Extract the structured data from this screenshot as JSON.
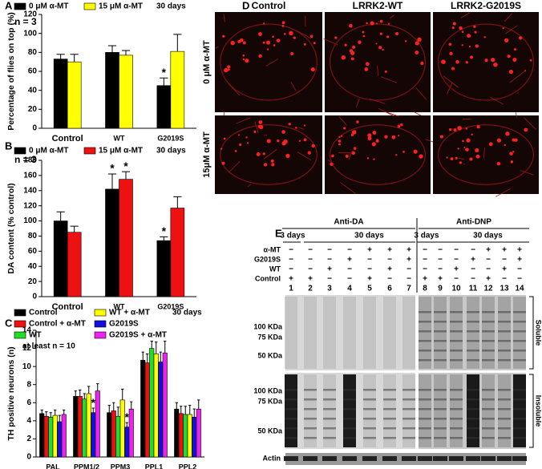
{
  "chart_data": [
    {
      "type": "bar",
      "panel": "A",
      "ylabel": "Percentage of flies on top (%)",
      "categories": [
        "Control",
        "WT",
        "G2019S"
      ],
      "series": [
        {
          "name": "0 μM α-MT",
          "color": "#000000",
          "values": [
            73,
            80,
            45
          ],
          "errors": [
            5,
            7,
            8
          ]
        },
        {
          "name": "15 μM α-MT",
          "color": "#ffff00",
          "values": [
            70,
            77,
            81
          ],
          "errors": [
            8,
            5,
            18
          ]
        }
      ],
      "ylim": [
        0,
        120
      ],
      "yticks": [
        0,
        20,
        40,
        60,
        80,
        100,
        120
      ],
      "notes": [
        "n = 3",
        "30 days"
      ],
      "annotations": [
        {
          "text": "*",
          "series": "0 μM α-MT",
          "category": "G2019S"
        }
      ]
    },
    {
      "type": "bar",
      "panel": "B",
      "ylabel": "DA content (% control)",
      "categories": [
        "Control",
        "WT",
        "G2019S"
      ],
      "series": [
        {
          "name": "0 μM α-MT",
          "color": "#000000",
          "values": [
            100,
            142,
            74
          ],
          "errors": [
            12,
            20,
            5
          ]
        },
        {
          "name": "15 μM α-MT",
          "color": "#ee1111",
          "values": [
            85,
            155,
            117
          ],
          "errors": [
            8,
            10,
            15
          ]
        }
      ],
      "ylim": [
        0,
        180
      ],
      "yticks": [
        0,
        20,
        40,
        60,
        80,
        100,
        120,
        140,
        160,
        180
      ],
      "notes": [
        "n = 3",
        "30 days"
      ],
      "annotations": [
        {
          "text": "*",
          "series": "0 μM α-MT",
          "category": "WT"
        },
        {
          "text": "*",
          "series": "15 μM α-MT",
          "category": "WT"
        },
        {
          "text": "*",
          "series": "0 μM α-MT",
          "category": "G2019S"
        }
      ]
    },
    {
      "type": "bar",
      "panel": "C",
      "ylabel": "TH positive neurons (n)",
      "categories": [
        "PAL",
        "PPM1/2",
        "PPM3",
        "PPL1",
        "PPL2"
      ],
      "series": [
        {
          "name": "Control",
          "color": "#000000",
          "values": [
            4.8,
            6.7,
            4.9,
            10.7,
            5.3
          ],
          "errors": [
            0.4,
            0.6,
            0.8,
            0.9,
            0.7
          ]
        },
        {
          "name": "Control + α-MT",
          "color": "#ee1111",
          "values": [
            4.5,
            6.7,
            5.1,
            10.4,
            4.8
          ],
          "errors": [
            0.5,
            0.7,
            0.9,
            1.0,
            0.8
          ]
        },
        {
          "name": "WT",
          "color": "#22dd22",
          "values": [
            4.4,
            6.4,
            4.5,
            12.0,
            4.7
          ],
          "errors": [
            0.5,
            0.6,
            1.0,
            0.8,
            0.9
          ]
        },
        {
          "name": "WT + α-MT",
          "color": "#ffff00",
          "values": [
            4.6,
            7.0,
            6.3,
            11.4,
            4.7
          ],
          "errors": [
            0.6,
            0.8,
            1.2,
            1.3,
            1.0
          ]
        },
        {
          "name": "G2019S",
          "color": "#1111dd",
          "values": [
            3.9,
            4.9,
            3.3,
            10.5,
            4.4
          ],
          "errors": [
            0.7,
            0.5,
            0.5,
            1.1,
            0.9
          ]
        },
        {
          "name": "G2019S + α-MT",
          "color": "#ee22ee",
          "values": [
            4.7,
            7.3,
            5.3,
            11.5,
            5.3
          ],
          "errors": [
            0.5,
            0.8,
            0.8,
            1.3,
            1.0
          ]
        }
      ],
      "ylim": [
        0,
        14
      ],
      "yticks": [
        0,
        2,
        4,
        6,
        8,
        10,
        12,
        14
      ],
      "notes": [
        "30 days",
        "at least n = 10"
      ],
      "annotations": [
        {
          "text": "*",
          "series": "G2019S",
          "category": "PPM1/2"
        },
        {
          "text": "*",
          "series": "G2019S",
          "category": "PPM3"
        }
      ]
    }
  ],
  "panel_d": {
    "panel": "D",
    "columns": [
      "Control",
      "LRRK2-WT",
      "LRRK2-G2019S"
    ],
    "rows": [
      "0 μM α-MT",
      "15μM α-MT"
    ]
  },
  "panel_e": {
    "panel": "E",
    "groups": [
      {
        "antibody": "Anti-DA",
        "periods": [
          "3 days",
          "30 days"
        ]
      },
      {
        "antibody": "Anti-DNP",
        "periods": [
          "3 days",
          "30 days"
        ]
      }
    ],
    "conditions": [
      {
        "label": "α-MT",
        "signs": [
          "−",
          "−",
          "−",
          "−",
          "+",
          "+",
          "+",
          "−",
          "−",
          "−",
          "−",
          "+",
          "+",
          "+"
        ]
      },
      {
        "label": "G2019S",
        "signs": [
          "−",
          "−",
          "−",
          "+",
          "−",
          "−",
          "+",
          "−",
          "−",
          "−",
          "+",
          "−",
          "−",
          "+"
        ]
      },
      {
        "label": "WT",
        "signs": [
          "−",
          "−",
          "+",
          "−",
          "−",
          "+",
          "−",
          "−",
          "−",
          "+",
          "−",
          "−",
          "+",
          "−"
        ]
      },
      {
        "label": "Control",
        "signs": [
          "+",
          "+",
          "−",
          "−",
          "+",
          "−",
          "−",
          "+",
          "+",
          "−",
          "−",
          "+",
          "−",
          "−"
        ]
      }
    ],
    "lanes": [
      1,
      2,
      3,
      4,
      5,
      6,
      7,
      8,
      9,
      10,
      11,
      12,
      13,
      14
    ],
    "markers": [
      "100 KDa",
      "75 KDa",
      "50 KDa"
    ],
    "fractions": [
      "Soluble",
      "Insoluble"
    ],
    "loading": "Actin"
  }
}
